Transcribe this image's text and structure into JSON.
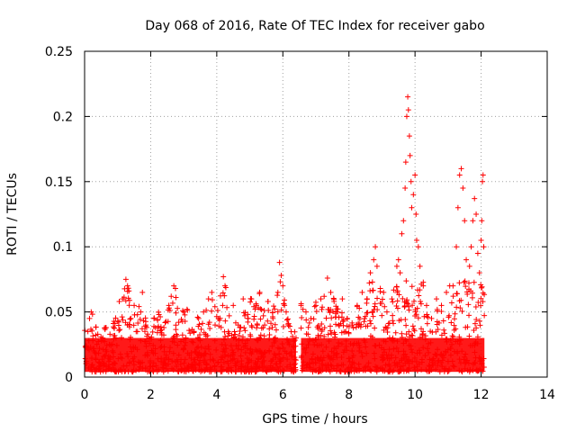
{
  "chart_data": {
    "type": "scatter",
    "title": "Day 068 of 2016, Rate Of TEC Index for receiver gabo",
    "xlabel": "GPS time / hours",
    "ylabel": "ROTI / TECUs",
    "xlim": [
      0,
      14
    ],
    "ylim": [
      0,
      0.25
    ],
    "xticks": [
      0,
      2,
      4,
      6,
      8,
      10,
      12,
      14
    ],
    "xtick_labels": [
      "0",
      "2",
      "4",
      "6",
      "8",
      "10",
      "12",
      "14"
    ],
    "yticks": [
      0,
      0.05,
      0.1,
      0.15,
      0.2,
      0.25
    ],
    "ytick_labels": [
      "0",
      "0.05",
      "0.1",
      "0.15",
      "0.2",
      "0.25"
    ],
    "grid": true,
    "marker": "+",
    "color": "#ff0000",
    "series": [
      {
        "name": "ROTI",
        "points": [
          [
            0.05,
            0.012
          ],
          [
            0.1,
            0.035
          ],
          [
            0.15,
            0.045
          ],
          [
            0.2,
            0.05
          ],
          [
            0.25,
            0.028
          ],
          [
            0.35,
            0.018
          ],
          [
            0.45,
            0.022
          ],
          [
            0.55,
            0.03
          ],
          [
            0.65,
            0.038
          ],
          [
            0.75,
            0.025
          ],
          [
            0.85,
            0.02
          ],
          [
            0.95,
            0.03
          ],
          [
            1.05,
            0.058
          ],
          [
            1.15,
            0.06
          ],
          [
            1.25,
            0.075
          ],
          [
            1.3,
            0.07
          ],
          [
            1.4,
            0.045
          ],
          [
            1.5,
            0.055
          ],
          [
            1.6,
            0.035
          ],
          [
            1.7,
            0.05
          ],
          [
            1.75,
            0.065
          ],
          [
            1.85,
            0.04
          ],
          [
            1.95,
            0.03
          ],
          [
            2.1,
            0.045
          ],
          [
            2.25,
            0.048
          ],
          [
            2.4,
            0.038
          ],
          [
            2.55,
            0.055
          ],
          [
            2.7,
            0.07
          ],
          [
            2.75,
            0.068
          ],
          [
            2.85,
            0.042
          ],
          [
            3.0,
            0.05
          ],
          [
            3.1,
            0.052
          ],
          [
            3.3,
            0.035
          ],
          [
            3.45,
            0.045
          ],
          [
            3.6,
            0.05
          ],
          [
            3.75,
            0.06
          ],
          [
            3.85,
            0.065
          ],
          [
            3.95,
            0.04
          ],
          [
            4.05,
            0.045
          ],
          [
            4.2,
            0.077
          ],
          [
            4.25,
            0.07
          ],
          [
            4.35,
            0.035
          ],
          [
            4.5,
            0.055
          ],
          [
            4.65,
            0.04
          ],
          [
            4.8,
            0.06
          ],
          [
            4.95,
            0.045
          ],
          [
            5.05,
            0.06
          ],
          [
            5.2,
            0.055
          ],
          [
            5.3,
            0.065
          ],
          [
            5.45,
            0.04
          ],
          [
            5.55,
            0.058
          ],
          [
            5.7,
            0.045
          ],
          [
            5.85,
            0.065
          ],
          [
            5.9,
            0.088
          ],
          [
            5.95,
            0.078
          ],
          [
            6.0,
            0.07
          ],
          [
            6.05,
            0.055
          ],
          [
            6.1,
            0.05
          ],
          [
            6.25,
            0.035
          ],
          [
            6.4,
            0.03
          ],
          [
            6.55,
            0.055
          ],
          [
            6.7,
            0.05
          ],
          [
            6.85,
            0.045
          ],
          [
            7.0,
            0.055
          ],
          [
            7.15,
            0.06
          ],
          [
            7.25,
            0.062
          ],
          [
            7.35,
            0.076
          ],
          [
            7.45,
            0.065
          ],
          [
            7.55,
            0.058
          ],
          [
            7.65,
            0.05
          ],
          [
            7.8,
            0.06
          ],
          [
            7.95,
            0.045
          ],
          [
            8.1,
            0.04
          ],
          [
            8.25,
            0.055
          ],
          [
            8.4,
            0.065
          ],
          [
            8.55,
            0.06
          ],
          [
            8.65,
            0.08
          ],
          [
            8.75,
            0.09
          ],
          [
            8.8,
            0.1
          ],
          [
            8.85,
            0.085
          ],
          [
            8.95,
            0.068
          ],
          [
            9.05,
            0.065
          ],
          [
            9.15,
            0.05
          ],
          [
            9.3,
            0.06
          ],
          [
            9.45,
            0.085
          ],
          [
            9.5,
            0.09
          ],
          [
            9.55,
            0.08
          ],
          [
            9.6,
            0.11
          ],
          [
            9.65,
            0.12
          ],
          [
            9.7,
            0.145
          ],
          [
            9.72,
            0.165
          ],
          [
            9.75,
            0.2
          ],
          [
            9.78,
            0.215
          ],
          [
            9.8,
            0.205
          ],
          [
            9.83,
            0.185
          ],
          [
            9.85,
            0.17
          ],
          [
            9.88,
            0.15
          ],
          [
            9.9,
            0.13
          ],
          [
            9.95,
            0.14
          ],
          [
            10.0,
            0.155
          ],
          [
            10.03,
            0.125
          ],
          [
            10.05,
            0.105
          ],
          [
            10.1,
            0.1
          ],
          [
            10.15,
            0.085
          ],
          [
            10.25,
            0.07
          ],
          [
            10.35,
            0.055
          ],
          [
            10.5,
            0.045
          ],
          [
            10.65,
            0.06
          ],
          [
            10.8,
            0.055
          ],
          [
            10.95,
            0.065
          ],
          [
            11.05,
            0.07
          ],
          [
            11.15,
            0.07
          ],
          [
            11.25,
            0.1
          ],
          [
            11.3,
            0.13
          ],
          [
            11.35,
            0.155
          ],
          [
            11.4,
            0.16
          ],
          [
            11.45,
            0.145
          ],
          [
            11.5,
            0.12
          ],
          [
            11.55,
            0.09
          ],
          [
            11.65,
            0.085
          ],
          [
            11.7,
            0.1
          ],
          [
            11.75,
            0.12
          ],
          [
            11.8,
            0.137
          ],
          [
            11.85,
            0.125
          ],
          [
            11.9,
            0.095
          ],
          [
            11.95,
            0.08
          ],
          [
            12.0,
            0.105
          ],
          [
            12.02,
            0.12
          ],
          [
            12.04,
            0.15
          ],
          [
            12.06,
            0.155
          ],
          [
            12.08,
            0.1
          ]
        ]
      }
    ]
  }
}
